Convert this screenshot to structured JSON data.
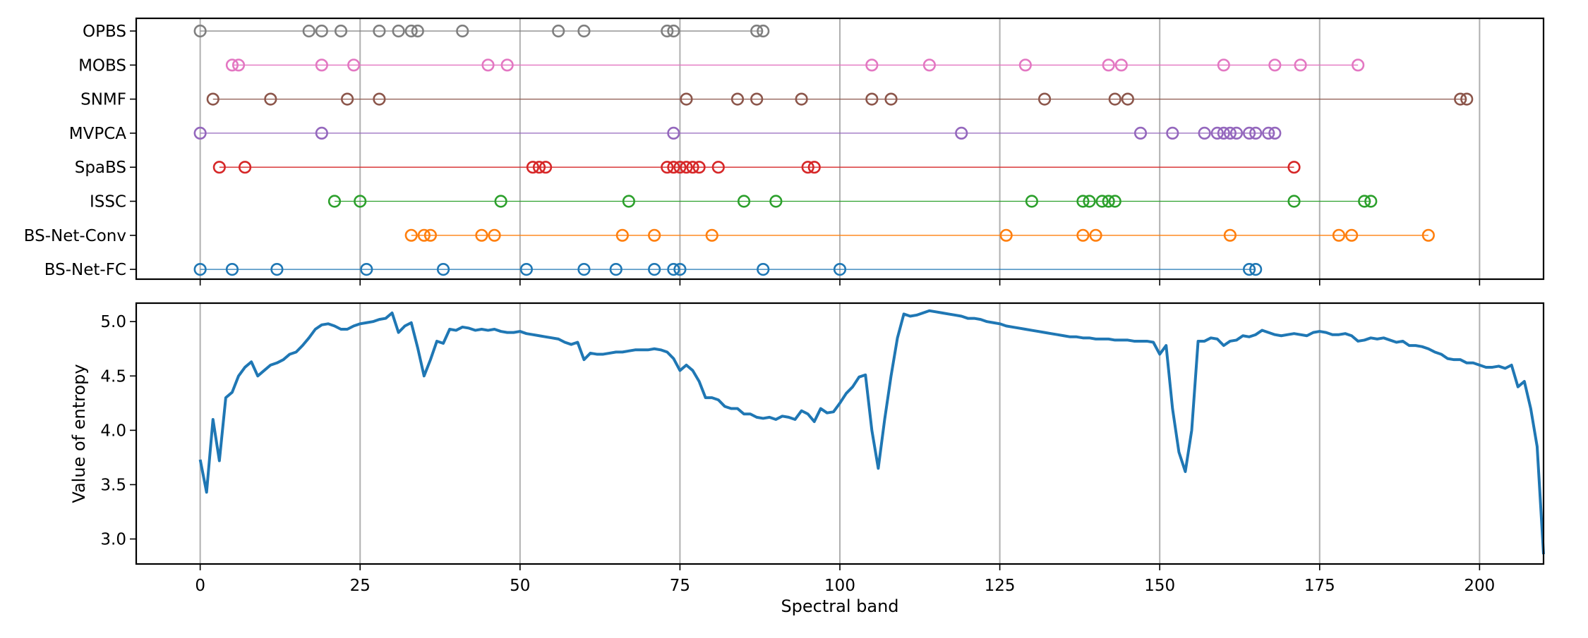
{
  "chart_data": [
    {
      "type": "scatter",
      "title": "",
      "xlabel": "",
      "ylabel": "",
      "xlim": [
        -10,
        210
      ],
      "grid": "vertical",
      "marker": "open-circle",
      "series": [
        {
          "name": "OPBS",
          "color": "#7f7f7f",
          "bands": [
            0,
            17,
            19,
            22,
            28,
            31,
            33,
            34,
            41,
            56,
            60,
            73,
            74,
            87,
            88
          ]
        },
        {
          "name": "MOBS",
          "color": "#e377c2",
          "bands": [
            5,
            6,
            19,
            24,
            45,
            48,
            105,
            114,
            129,
            142,
            144,
            160,
            168,
            172,
            181
          ]
        },
        {
          "name": "SNMF",
          "color": "#8c564b",
          "bands": [
            2,
            11,
            23,
            28,
            76,
            84,
            87,
            94,
            105,
            108,
            132,
            143,
            145,
            197,
            198
          ]
        },
        {
          "name": "MVPCA",
          "color": "#9467bd",
          "bands": [
            0,
            19,
            74,
            119,
            147,
            152,
            157,
            159,
            160,
            161,
            162,
            164,
            165,
            167,
            168
          ]
        },
        {
          "name": "SpaBS",
          "color": "#d62728",
          "bands": [
            3,
            7,
            52,
            53,
            54,
            73,
            74,
            75,
            76,
            77,
            78,
            81,
            95,
            96,
            171
          ]
        },
        {
          "name": "ISSC",
          "color": "#2ca02c",
          "bands": [
            21,
            25,
            47,
            67,
            85,
            90,
            130,
            138,
            139,
            141,
            142,
            143,
            171,
            182,
            183
          ]
        },
        {
          "name": "BS-Net-Conv",
          "color": "#ff7f0e",
          "bands": [
            33,
            35,
            36,
            44,
            46,
            66,
            71,
            80,
            126,
            138,
            140,
            161,
            178,
            180,
            192
          ]
        },
        {
          "name": "BS-Net-FC",
          "color": "#1f77b4",
          "bands": [
            0,
            5,
            12,
            26,
            38,
            51,
            60,
            65,
            71,
            74,
            75,
            88,
            100,
            164,
            165
          ]
        }
      ]
    },
    {
      "type": "line",
      "title": "",
      "xlabel": "Spectral band",
      "ylabel": "Value of entropy",
      "xlim": [
        -10,
        210
      ],
      "ylim": [
        2.77,
        5.17
      ],
      "grid": "vertical",
      "color": "#1f77b4",
      "x_ticks": [
        "0",
        "25",
        "50",
        "75",
        "100",
        "125",
        "150",
        "175",
        "200"
      ],
      "y_ticks": [
        "3.0",
        "3.5",
        "4.0",
        "4.5",
        "5.0"
      ],
      "series": [
        {
          "name": "",
          "values": [
            3.73,
            3.43,
            4.1,
            3.72,
            4.3,
            4.35,
            4.5,
            4.58,
            4.63,
            4.5,
            4.55,
            4.6,
            4.62,
            4.65,
            4.7,
            4.72,
            4.78,
            4.85,
            4.93,
            4.97,
            4.98,
            4.96,
            4.93,
            4.93,
            4.96,
            4.98,
            4.99,
            5.0,
            5.02,
            5.03,
            5.08,
            4.9,
            4.96,
            4.99,
            4.76,
            4.5,
            4.65,
            4.82,
            4.8,
            4.93,
            4.92,
            4.95,
            4.94,
            4.92,
            4.93,
            4.92,
            4.93,
            4.91,
            4.9,
            4.9,
            4.91,
            4.89,
            4.88,
            4.87,
            4.86,
            4.85,
            4.84,
            4.81,
            4.79,
            4.81,
            4.65,
            4.71,
            4.7,
            4.7,
            4.71,
            4.72,
            4.72,
            4.73,
            4.74,
            4.74,
            4.74,
            4.75,
            4.74,
            4.72,
            4.66,
            4.55,
            4.6,
            4.55,
            4.45,
            4.3,
            4.3,
            4.28,
            4.22,
            4.2,
            4.2,
            4.15,
            4.15,
            4.12,
            4.11,
            4.12,
            4.1,
            4.13,
            4.12,
            4.1,
            4.18,
            4.15,
            4.08,
            4.2,
            4.16,
            4.17,
            4.25,
            4.34,
            4.4,
            4.49,
            4.51,
            4.0,
            3.65,
            4.1,
            4.5,
            4.85,
            5.07,
            5.05,
            5.06,
            5.08,
            5.1,
            5.09,
            5.08,
            5.07,
            5.06,
            5.05,
            5.03,
            5.03,
            5.02,
            5.0,
            4.99,
            4.98,
            4.96,
            4.95,
            4.94,
            4.93,
            4.92,
            4.91,
            4.9,
            4.89,
            4.88,
            4.87,
            4.86,
            4.86,
            4.85,
            4.85,
            4.84,
            4.84,
            4.84,
            4.83,
            4.83,
            4.83,
            4.82,
            4.82,
            4.82,
            4.81,
            4.7,
            4.78,
            4.2,
            3.8,
            3.62,
            4.0,
            4.82,
            4.82,
            4.85,
            4.84,
            4.78,
            4.82,
            4.83,
            4.87,
            4.86,
            4.88,
            4.92,
            4.9,
            4.88,
            4.87,
            4.88,
            4.89,
            4.88,
            4.87,
            4.9,
            4.91,
            4.9,
            4.88,
            4.88,
            4.89,
            4.87,
            4.82,
            4.83,
            4.85,
            4.84,
            4.85,
            4.83,
            4.81,
            4.82,
            4.78,
            4.78,
            4.77,
            4.75,
            4.72,
            4.7,
            4.66,
            4.65,
            4.65,
            4.62,
            4.62,
            4.6,
            4.58,
            4.58,
            4.59,
            4.57,
            4.6,
            4.4,
            4.45,
            4.2,
            3.85,
            2.86
          ]
        }
      ]
    }
  ]
}
